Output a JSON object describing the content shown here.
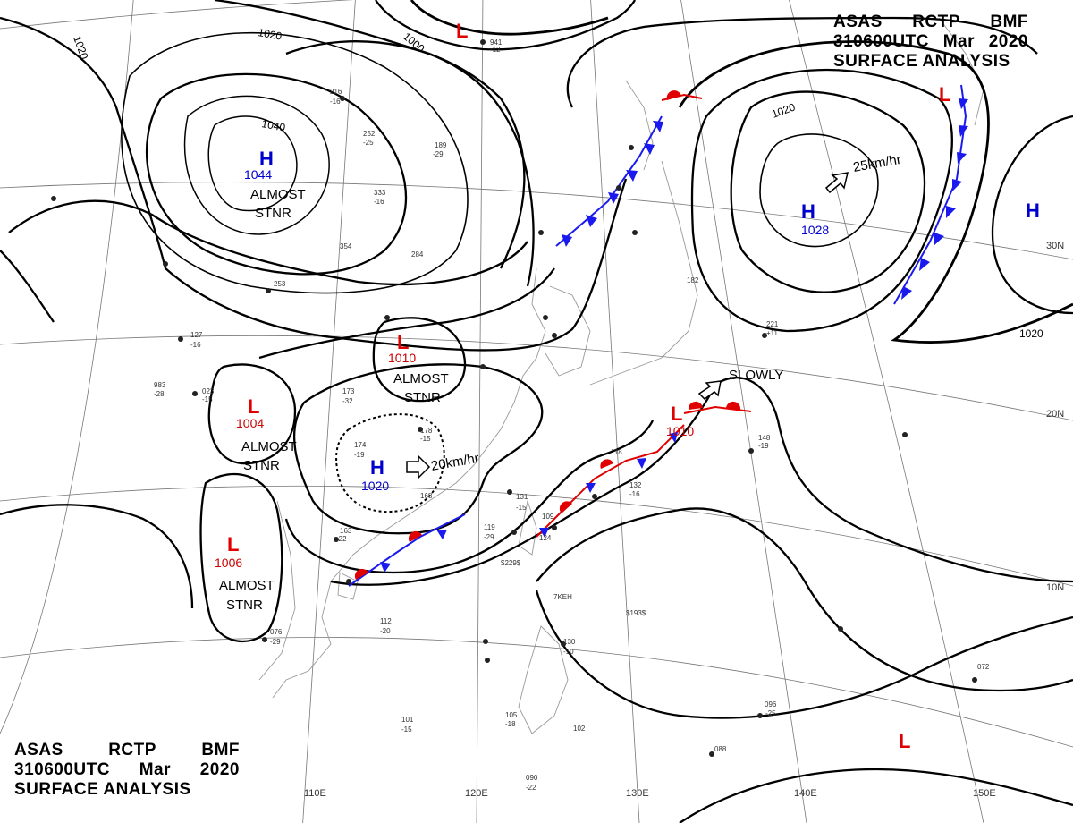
{
  "header_top": {
    "agency": "ASAS",
    "station": "RCTP",
    "code": "BMF",
    "datetime": "310600UTC",
    "month": "Mar",
    "year": "2020",
    "title": "SURFACE ANALYSIS"
  },
  "header_bottom": {
    "agency": "ASAS",
    "station": "RCTP",
    "code": "BMF",
    "datetime": "310600UTC",
    "month": "Mar",
    "year": "2020",
    "title": "SURFACE ANALYSIS"
  },
  "longitude_labels": [
    "110E",
    "120E",
    "130E",
    "140E",
    "150E"
  ],
  "latitude_labels": [
    "30N",
    "20N",
    "10N"
  ],
  "isobar_labels": [
    "1020",
    "1000",
    "1040",
    "1020",
    "1020",
    "1020"
  ],
  "pressure_systems": [
    {
      "type": "H",
      "value": "1044",
      "note_line1": "ALMOST",
      "note_line2": "STNR"
    },
    {
      "type": "H",
      "value": "1028",
      "motion": "25km/hr"
    },
    {
      "type": "H",
      "value": ""
    },
    {
      "type": "L",
      "value": ""
    },
    {
      "type": "L",
      "value": ""
    },
    {
      "type": "L",
      "value": "1010",
      "note_line1": "ALMOST",
      "note_line2": "STNR"
    },
    {
      "type": "L",
      "value": "1004",
      "note_line1": "ALMOST",
      "note_line2": "STNR"
    },
    {
      "type": "H",
      "value": "1020",
      "motion": "20km/hr"
    },
    {
      "type": "L",
      "value": "1006",
      "note_line1": "ALMOST",
      "note_line2": "STNR"
    },
    {
      "type": "L",
      "value": "1010",
      "motion": "SLOWLY"
    },
    {
      "type": "L",
      "value": ""
    }
  ],
  "station_samples": [
    "941",
    "-12",
    "216",
    "-16",
    "252",
    "-25",
    "189",
    "-29",
    "333",
    "-16",
    "354",
    "284",
    "253",
    "127",
    "-16",
    "983",
    "-28",
    "023",
    "-15",
    "173",
    "-32",
    "178",
    "-15",
    "174",
    "-19",
    "168",
    "163",
    "-22",
    "131",
    "-15",
    "119",
    "-29",
    "109",
    "124",
    "132",
    "-16",
    "118",
    "221",
    "+11",
    "148",
    "-19",
    "182",
    "076",
    "-29",
    "112",
    "-20",
    "130",
    "-10",
    "101",
    "-15",
    "105",
    "-18",
    "102",
    "096",
    "-25",
    "088",
    "090",
    "-22",
    "072",
    "7KEH",
    "$193$",
    "$229$"
  ],
  "colors": {
    "high": "#0000cc",
    "low_letter": "#e00000",
    "low_value": "#cc0000",
    "cold_front": "#1a1aee",
    "warm_front": "#e00000",
    "isobar": "#000000",
    "grid": "#777777",
    "coast": "#999999"
  }
}
